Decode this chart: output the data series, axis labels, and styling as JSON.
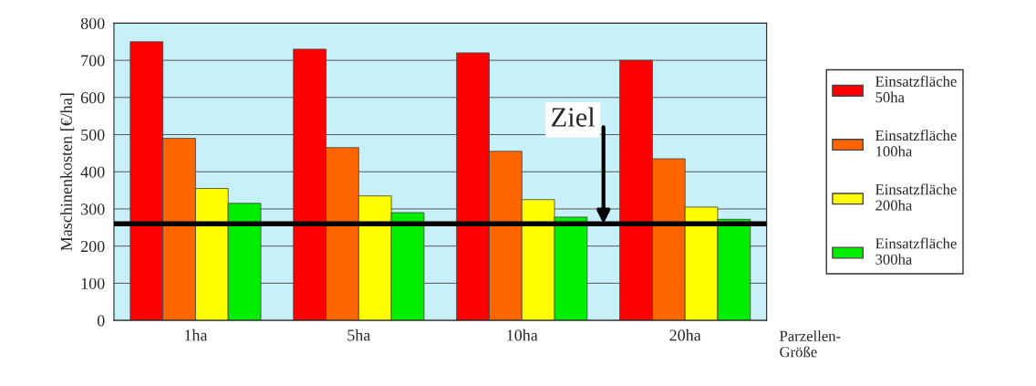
{
  "chart_data": {
    "type": "bar",
    "ylabel": "Maschinenkosten [€/ha]",
    "xlabel": "Parzellen-\nGröße",
    "categories": [
      "1ha",
      "5ha",
      "10ha",
      "20ha"
    ],
    "series": [
      {
        "name": "Einsatzfläche\n50ha",
        "color": "#ff0000",
        "values": [
          750,
          730,
          720,
          700
        ]
      },
      {
        "name": "Einsatzfläche\n100ha",
        "color": "#ff6600",
        "values": [
          490,
          465,
          455,
          435
        ]
      },
      {
        "name": "Einsatzfläche\n200ha",
        "color": "#ffff00",
        "values": [
          355,
          335,
          325,
          305
        ]
      },
      {
        "name": "Einsatzfläche\n300ha",
        "color": "#00ee00",
        "values": [
          315,
          290,
          278,
          272
        ]
      }
    ],
    "ylim": [
      0,
      800
    ],
    "yticks": [
      0,
      100,
      200,
      300,
      400,
      500,
      600,
      700,
      800
    ],
    "grid": "y",
    "legend": "right",
    "ref_lines": [
      {
        "axis": "y",
        "value": 260,
        "label": "Ziel",
        "color": "#000000"
      }
    ]
  }
}
